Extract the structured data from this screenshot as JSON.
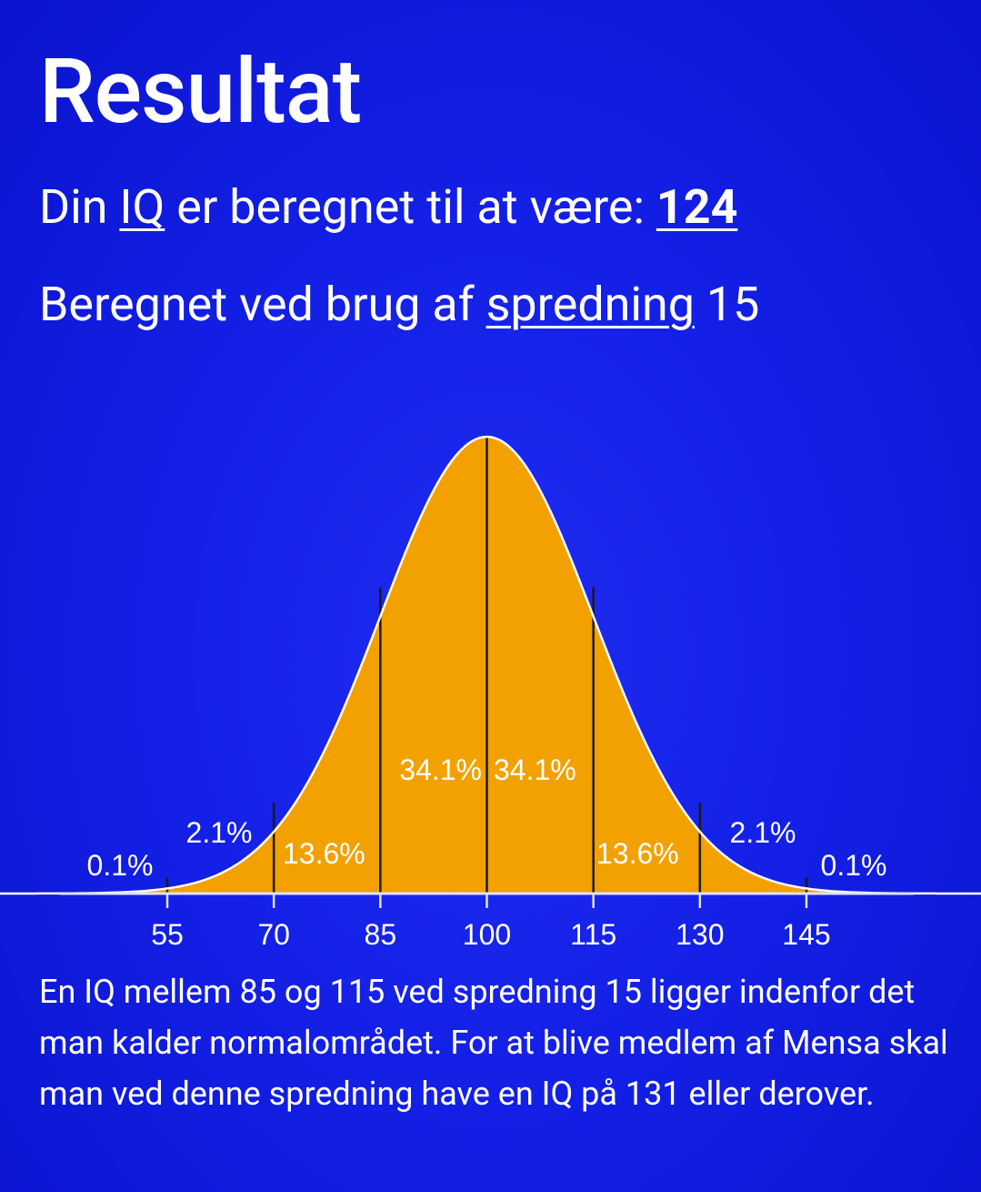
{
  "page": {
    "title": "Resultat",
    "result": {
      "prefix": "Din ",
      "iq_link": "IQ",
      "middle": " er beregnet til at være: ",
      "value": "124"
    },
    "spread": {
      "prefix": "Beregnet ved brug af ",
      "link": "spredning",
      "suffix": " 15"
    },
    "description": "En IQ mellem 85 og 115 ved spredning 15 ligger indenfor det man kalder normalområdet. For at blive medlem af Mensa skal man ved denne spredning have en IQ på 131 eller derover."
  },
  "colors": {
    "background": "#1420e6",
    "curve_fill": "#f2a100",
    "curve_outline": "#ffffff",
    "text": "#ffffff",
    "divider_lines": "#1a1a1a"
  },
  "chart_data": {
    "type": "area",
    "mean": 100,
    "sd": 15,
    "x_ticks": [
      55,
      70,
      85,
      100,
      115,
      130,
      145
    ],
    "segments": [
      {
        "label": "0.1%",
        "from": null,
        "to": 55
      },
      {
        "label": "2.1%",
        "from": 55,
        "to": 70
      },
      {
        "label": "13.6%",
        "from": 70,
        "to": 85
      },
      {
        "label": "34.1%",
        "from": 85,
        "to": 100
      },
      {
        "label": "34.1%",
        "from": 100,
        "to": 115
      },
      {
        "label": "13.6%",
        "from": 115,
        "to": 130
      },
      {
        "label": "2.1%",
        "from": 130,
        "to": 145
      },
      {
        "label": "0.1%",
        "from": 145,
        "to": null
      }
    ],
    "title": "",
    "xlabel": "",
    "ylabel": "",
    "grid": false
  }
}
